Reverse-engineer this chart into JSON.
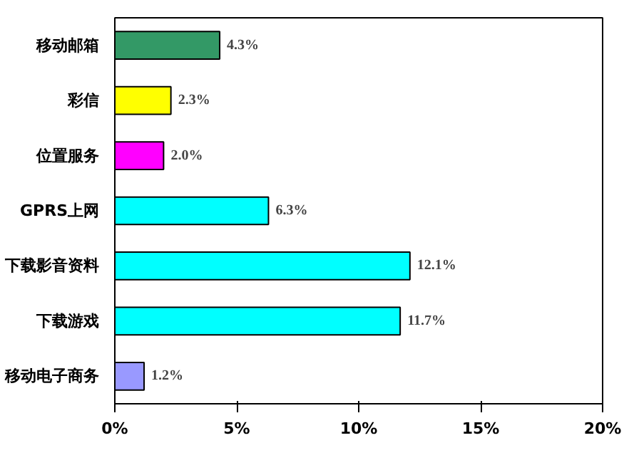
{
  "chart_data": {
    "type": "bar",
    "orientation": "horizontal",
    "categories": [
      "移动邮箱",
      "彩信",
      "位置服务",
      "GPRS上网",
      "下载影音资料",
      "下载游戏",
      "移动电子商务"
    ],
    "values": [
      4.3,
      2.3,
      2.0,
      6.3,
      12.1,
      11.7,
      1.2
    ],
    "colors": [
      "#339966",
      "#ffff00",
      "#ff00ff",
      "#00ffff",
      "#00ffff",
      "#00ffff",
      "#9999ff"
    ],
    "value_labels": [
      "4.3%",
      "2.3%",
      "2.0%",
      "6.3%",
      "12.1%",
      "11.7%",
      "1.2%"
    ],
    "xlim": [
      0,
      20
    ],
    "xticks": [
      {
        "value": 0,
        "label": "0%"
      },
      {
        "value": 5,
        "label": "5%"
      },
      {
        "value": 10,
        "label": "10%"
      },
      {
        "value": 15,
        "label": "15%"
      },
      {
        "value": 20,
        "label": "20%"
      }
    ]
  }
}
